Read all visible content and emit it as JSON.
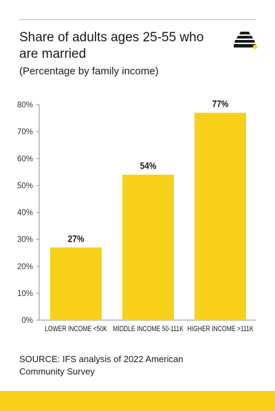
{
  "header": {
    "title": "Share of adults ages 25-55 who are married",
    "subtitle": "(Percentage by family income)"
  },
  "logo": {
    "icon": "beehive-icon"
  },
  "colors": {
    "bar": "#F9D11B",
    "accent": "#F9D11B",
    "text": "#1a1a1a",
    "rule": "#bdbdbd"
  },
  "chart_data": {
    "type": "bar",
    "categories": [
      "LOWER INCOME <50K",
      "MIDDLE INCOME 50-111K",
      "HIGHER INCOME >111K"
    ],
    "values": [
      27,
      54,
      77
    ],
    "value_labels": [
      "27%",
      "54%",
      "77%"
    ],
    "ylim": [
      0,
      80
    ],
    "yticks": [
      0,
      10,
      20,
      30,
      40,
      50,
      60,
      70,
      80
    ],
    "ytick_labels": [
      "0%",
      "10%",
      "20%",
      "30%",
      "40%",
      "50%",
      "60%",
      "70%",
      "80%"
    ],
    "grid": false
  },
  "footer": {
    "source": "SOURCE: IFS analysis of 2022 American Community Survey"
  }
}
